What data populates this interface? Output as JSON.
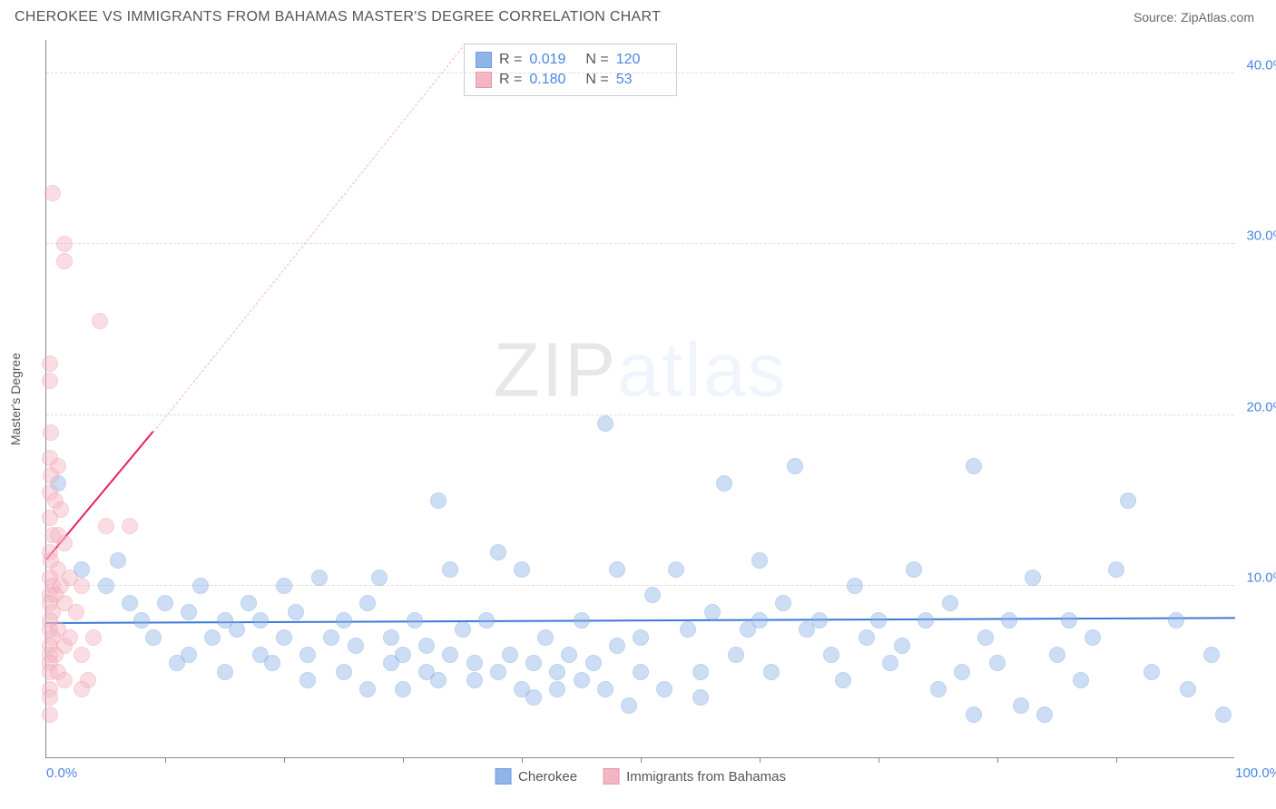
{
  "header": {
    "title": "CHEROKEE VS IMMIGRANTS FROM BAHAMAS MASTER'S DEGREE CORRELATION CHART",
    "source": "Source: ZipAtlas.com"
  },
  "watermark": {
    "part1": "ZIP",
    "part2": "atlas"
  },
  "chart": {
    "type": "scatter",
    "ylabel": "Master's Degree",
    "xlim": [
      0,
      100
    ],
    "ylim": [
      0,
      42
    ],
    "xlim_labels": {
      "min": "0.0%",
      "max": "100.0%"
    },
    "ytick_step": 10,
    "ytick_labels": [
      "10.0%",
      "20.0%",
      "30.0%",
      "40.0%"
    ],
    "xtick_positions": [
      10,
      20,
      30,
      40,
      50,
      60,
      70,
      80,
      90
    ],
    "background_color": "#ffffff",
    "grid_color": "#dddddd",
    "axis_color": "#888888",
    "tick_label_color": "#4a86e8",
    "marker_radius": 9,
    "marker_opacity": 0.45,
    "series": [
      {
        "name": "Cherokee",
        "color": "#8fb4e8",
        "border_color": "#6f9fe0",
        "R": "0.019",
        "N": "120",
        "trend": {
          "x1": 0,
          "y1": 7.8,
          "x2": 100,
          "y2": 8.1,
          "color": "#3b78d8",
          "width": 2.5,
          "dashed": false
        },
        "points": [
          [
            1,
            16
          ],
          [
            3,
            11
          ],
          [
            5,
            10
          ],
          [
            6,
            11.5
          ],
          [
            7,
            9
          ],
          [
            8,
            8
          ],
          [
            9,
            7
          ],
          [
            10,
            9
          ],
          [
            11,
            5.5
          ],
          [
            12,
            8.5
          ],
          [
            12,
            6
          ],
          [
            13,
            10
          ],
          [
            14,
            7
          ],
          [
            15,
            8
          ],
          [
            15,
            5
          ],
          [
            16,
            7.5
          ],
          [
            17,
            9
          ],
          [
            18,
            6
          ],
          [
            18,
            8
          ],
          [
            19,
            5.5
          ],
          [
            20,
            10
          ],
          [
            20,
            7
          ],
          [
            21,
            8.5
          ],
          [
            22,
            6
          ],
          [
            22,
            4.5
          ],
          [
            23,
            10.5
          ],
          [
            24,
            7
          ],
          [
            25,
            5
          ],
          [
            25,
            8
          ],
          [
            26,
            6.5
          ],
          [
            27,
            4
          ],
          [
            27,
            9
          ],
          [
            28,
            10.5
          ],
          [
            29,
            5.5
          ],
          [
            29,
            7
          ],
          [
            30,
            6
          ],
          [
            30,
            4
          ],
          [
            31,
            8
          ],
          [
            32,
            5
          ],
          [
            32,
            6.5
          ],
          [
            33,
            15
          ],
          [
            33,
            4.5
          ],
          [
            34,
            11
          ],
          [
            34,
            6
          ],
          [
            35,
            7.5
          ],
          [
            36,
            4.5
          ],
          [
            36,
            5.5
          ],
          [
            37,
            8
          ],
          [
            38,
            12
          ],
          [
            38,
            5
          ],
          [
            39,
            6
          ],
          [
            40,
            11
          ],
          [
            40,
            4
          ],
          [
            41,
            5.5
          ],
          [
            41,
            3.5
          ],
          [
            42,
            7
          ],
          [
            43,
            5
          ],
          [
            43,
            4
          ],
          [
            44,
            6
          ],
          [
            45,
            8
          ],
          [
            45,
            4.5
          ],
          [
            46,
            5.5
          ],
          [
            47,
            19.5
          ],
          [
            47,
            4
          ],
          [
            48,
            11
          ],
          [
            48,
            6.5
          ],
          [
            49,
            3
          ],
          [
            50,
            7
          ],
          [
            50,
            5
          ],
          [
            51,
            9.5
          ],
          [
            52,
            4
          ],
          [
            53,
            11
          ],
          [
            54,
            7.5
          ],
          [
            55,
            5
          ],
          [
            55,
            3.5
          ],
          [
            56,
            8.5
          ],
          [
            57,
            16
          ],
          [
            58,
            6
          ],
          [
            59,
            7.5
          ],
          [
            60,
            8
          ],
          [
            60,
            11.5
          ],
          [
            61,
            5
          ],
          [
            62,
            9
          ],
          [
            63,
            17
          ],
          [
            64,
            7.5
          ],
          [
            65,
            8
          ],
          [
            66,
            6
          ],
          [
            67,
            4.5
          ],
          [
            68,
            10
          ],
          [
            69,
            7
          ],
          [
            70,
            8
          ],
          [
            71,
            5.5
          ],
          [
            72,
            6.5
          ],
          [
            73,
            11
          ],
          [
            74,
            8
          ],
          [
            75,
            4
          ],
          [
            76,
            9
          ],
          [
            77,
            5
          ],
          [
            78,
            2.5
          ],
          [
            78,
            17
          ],
          [
            79,
            7
          ],
          [
            80,
            5.5
          ],
          [
            81,
            8
          ],
          [
            82,
            3
          ],
          [
            83,
            10.5
          ],
          [
            85,
            6
          ],
          [
            86,
            8
          ],
          [
            87,
            4.5
          ],
          [
            88,
            7
          ],
          [
            90,
            11
          ],
          [
            91,
            15
          ],
          [
            93,
            5
          ],
          [
            95,
            8
          ],
          [
            96,
            4
          ],
          [
            98,
            6
          ],
          [
            84,
            2.5
          ],
          [
            99,
            2.5
          ]
        ]
      },
      {
        "name": "Immigrants from Bahamas",
        "color": "#f4b6c2",
        "border_color": "#ec93a7",
        "R": "0.180",
        "N": "53",
        "trend": {
          "x1": 0,
          "y1": 11.5,
          "x2": 9,
          "y2": 19,
          "color": "#e91e63",
          "width": 2,
          "dashed": false
        },
        "trend_extension": {
          "x1": 9,
          "y1": 19,
          "x2": 35,
          "y2": 41.5,
          "color": "#f4b6c2",
          "width": 1,
          "dashed": true
        },
        "points": [
          [
            0.5,
            33
          ],
          [
            1.5,
            30
          ],
          [
            1.5,
            29
          ],
          [
            4.5,
            25.5
          ],
          [
            0.3,
            23
          ],
          [
            0.3,
            22
          ],
          [
            0.4,
            19
          ],
          [
            0.3,
            17.5
          ],
          [
            1,
            17
          ],
          [
            0.4,
            16.5
          ],
          [
            0.3,
            15.5
          ],
          [
            0.8,
            15
          ],
          [
            1.2,
            14.5
          ],
          [
            0.3,
            14
          ],
          [
            5,
            13.5
          ],
          [
            7,
            13.5
          ],
          [
            0.5,
            13
          ],
          [
            1.5,
            12.5
          ],
          [
            0.3,
            12
          ],
          [
            0.4,
            11.5
          ],
          [
            1,
            11
          ],
          [
            0.3,
            10.5
          ],
          [
            2,
            10.5
          ],
          [
            0.5,
            10
          ],
          [
            1.2,
            10
          ],
          [
            3,
            10
          ],
          [
            0.3,
            9.5
          ],
          [
            0.8,
            9.5
          ],
          [
            0.3,
            9
          ],
          [
            1.5,
            9
          ],
          [
            0.5,
            8.5
          ],
          [
            2.5,
            8.5
          ],
          [
            0.3,
            8
          ],
          [
            0.3,
            7.5
          ],
          [
            1,
            7.5
          ],
          [
            0.5,
            7
          ],
          [
            2,
            7
          ],
          [
            4,
            7
          ],
          [
            0.3,
            6.5
          ],
          [
            1.5,
            6.5
          ],
          [
            0.3,
            6
          ],
          [
            0.8,
            6
          ],
          [
            3,
            6
          ],
          [
            0.3,
            5.5
          ],
          [
            0.3,
            5
          ],
          [
            1,
            5
          ],
          [
            1.5,
            4.5
          ],
          [
            3.5,
            4.5
          ],
          [
            0.3,
            4
          ],
          [
            3,
            4
          ],
          [
            0.3,
            3.5
          ],
          [
            0.3,
            2.5
          ],
          [
            1,
            13
          ]
        ]
      }
    ],
    "legend": {
      "series1_label": "Cherokee",
      "series2_label": "Immigrants from Bahamas"
    },
    "stats_labels": {
      "R": "R =",
      "N": "N ="
    }
  }
}
